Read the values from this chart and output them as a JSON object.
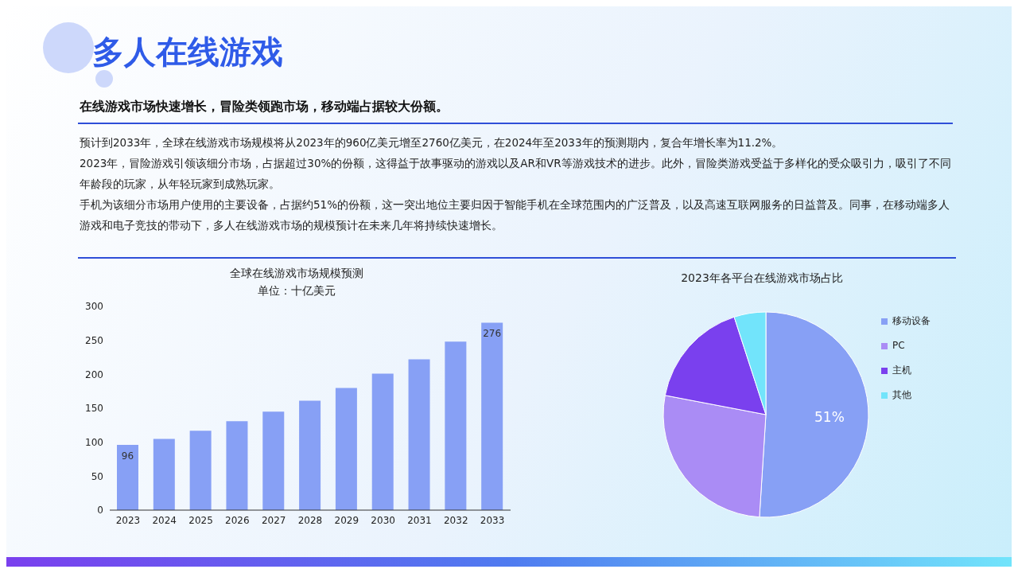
{
  "chart_data": [
    {
      "type": "other",
      "title": "多人在线游戏",
      "subtitle": "在线游戏市场快速增长，冒险类领跑市场，移动端占据较大份额。",
      "annotations": [
        "预计到2033年，全球在线游戏市场规模将从2023年的960亿美元增至2760亿美元，在2024年至2033年的预测期内，复合年增长率为11.2%。",
        "2023年，冒险游戏引领该细分市场，占据超过30%的份额，这得益于故事驱动的游戏以及AR和VR等游戏技术的进步。此外，冒险类游戏受益于多样化的受众吸引力，吸引了不同年龄段的玩家，从年轻玩家到成熟玩家。",
        "手机为该细分市场用户使用的主要设备，占据约51%的份额，这一突出地位主要归因于智能手机在全球范围内的广泛普及，以及高速互联网服务的日益普及。同事，在移动端多人游戏和电子竞技的带动下，多人在线游戏市场的规模预计在未来几年将持续快速增长。"
      ]
    },
    {
      "type": "bar",
      "title": "全球在线游戏市场规模预测",
      "subtitle": "单位：十亿美元",
      "categories": [
        "2023",
        "2024",
        "2025",
        "2026",
        "2027",
        "2028",
        "2029",
        "2030",
        "2031",
        "2032",
        "2033"
      ],
      "values": [
        96,
        105,
        117,
        131,
        145,
        161,
        180,
        201,
        222,
        248,
        276
      ],
      "color": "#87a0f5",
      "value_labels": [
        "96",
        null,
        null,
        null,
        null,
        null,
        null,
        null,
        null,
        null,
        "276"
      ],
      "ylim": [
        0,
        300
      ],
      "yticks": [
        0,
        50,
        100,
        150,
        200,
        250,
        300
      ]
    },
    {
      "type": "pie",
      "title": "2023年各平台在线游戏市场占比",
      "categories": [
        "移动设备",
        "PC",
        "主机",
        "其他"
      ],
      "values": [
        51,
        27,
        17,
        5
      ],
      "colors": [
        "#87a0f5",
        "#aa8cf5",
        "#7a40ee",
        "#72e4fb"
      ],
      "value_labels": [
        "51%",
        null,
        null,
        null
      ],
      "legend": "right"
    }
  ]
}
